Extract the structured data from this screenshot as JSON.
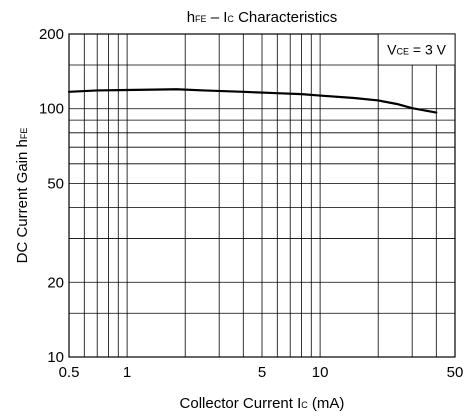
{
  "chart_data": {
    "type": "line",
    "title": {
      "parts": [
        {
          "text": "h",
          "sub": false
        },
        {
          "text": "FE",
          "sub": true
        },
        {
          "text": " – I",
          "sub": false
        },
        {
          "text": "C",
          "sub": true
        },
        {
          "text": " Characteristics",
          "sub": false
        }
      ]
    },
    "xlabel": {
      "parts": [
        {
          "text": "Collector Current I",
          "sub": false
        },
        {
          "text": "C",
          "sub": true
        },
        {
          "text": " (mA)",
          "sub": false
        }
      ]
    },
    "ylabel": {
      "parts": [
        {
          "text": "DC Current Gain h",
          "sub": false
        },
        {
          "text": "FE",
          "sub": true
        }
      ]
    },
    "annotation": {
      "parts": [
        {
          "text": "V",
          "sub": false
        },
        {
          "text": "CE",
          "sub": true
        },
        {
          "text": " = 3 V",
          "sub": false
        }
      ]
    },
    "x_scale": "log",
    "y_scale": "log",
    "xlim": [
      0.5,
      50
    ],
    "ylim": [
      10,
      200
    ],
    "x_ticks": [
      {
        "value": 0.5,
        "label": "0.5"
      },
      {
        "value": 1,
        "label": "1"
      },
      {
        "value": 5,
        "label": "5"
      },
      {
        "value": 10,
        "label": "10"
      },
      {
        "value": 50,
        "label": "50"
      }
    ],
    "y_ticks": [
      {
        "value": 10,
        "label": "10"
      },
      {
        "value": 20,
        "label": "20"
      },
      {
        "value": 50,
        "label": "50"
      },
      {
        "value": 100,
        "label": "100"
      },
      {
        "value": 200,
        "label": "200"
      }
    ],
    "x_gridlines": [
      0.6,
      0.7,
      0.8,
      0.9,
      1,
      2,
      3,
      4,
      5,
      6,
      7,
      8,
      9,
      10,
      20,
      30,
      40
    ],
    "y_gridlines": [
      15,
      20,
      30,
      40,
      50,
      60,
      70,
      80,
      90,
      100,
      150
    ],
    "grid": true,
    "series": [
      {
        "color": "#000000",
        "points": [
          {
            "x": 0.5,
            "y": 117
          },
          {
            "x": 0.7,
            "y": 118.5
          },
          {
            "x": 1,
            "y": 119
          },
          {
            "x": 1.5,
            "y": 119.5
          },
          {
            "x": 1.8,
            "y": 119.8
          },
          {
            "x": 2.5,
            "y": 118.5
          },
          {
            "x": 4,
            "y": 117
          },
          {
            "x": 6,
            "y": 115.5
          },
          {
            "x": 8,
            "y": 114.5
          },
          {
            "x": 10,
            "y": 113
          },
          {
            "x": 15,
            "y": 110.5
          },
          {
            "x": 20,
            "y": 108
          },
          {
            "x": 25,
            "y": 104.5
          },
          {
            "x": 30,
            "y": 100.5
          },
          {
            "x": 40,
            "y": 96.5
          }
        ]
      }
    ]
  }
}
